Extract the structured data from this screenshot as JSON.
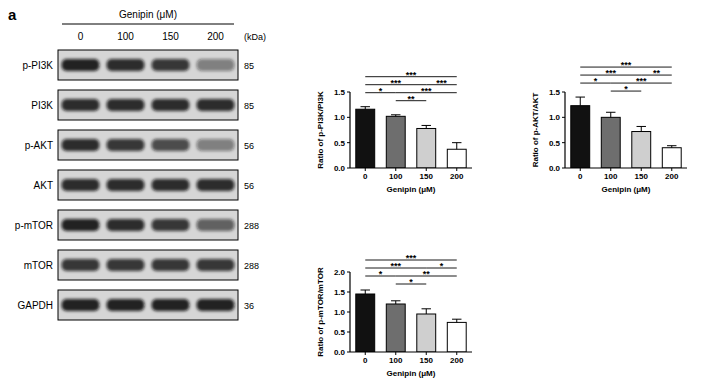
{
  "panel_label": "a",
  "blot": {
    "treatment_label": "Genipin (μM)",
    "lanes": [
      "0",
      "100",
      "150",
      "200"
    ],
    "unit_label": "(kDa)",
    "rows": [
      {
        "label": "p-PI3K",
        "kda": 85,
        "intensities": [
          0.9,
          0.85,
          0.8,
          0.45
        ]
      },
      {
        "label": "PI3K",
        "kda": 85,
        "intensities": [
          0.85,
          0.85,
          0.85,
          0.85
        ]
      },
      {
        "label": "p-AKT",
        "kda": 56,
        "intensities": [
          0.85,
          0.8,
          0.7,
          0.45
        ]
      },
      {
        "label": "AKT",
        "kda": 56,
        "intensities": [
          0.85,
          0.85,
          0.85,
          0.85
        ]
      },
      {
        "label": "p-mTOR",
        "kda": 288,
        "intensities": [
          0.9,
          0.85,
          0.8,
          0.6
        ]
      },
      {
        "label": "mTOR",
        "kda": 288,
        "intensities": [
          0.8,
          0.8,
          0.8,
          0.8
        ]
      },
      {
        "label": "GAPDH",
        "kda": 36,
        "intensities": [
          0.9,
          0.9,
          0.9,
          0.9
        ]
      }
    ]
  },
  "chart_data": [
    {
      "type": "bar",
      "x_label": "Genipin (μM)",
      "y_label": "Ratio of p-PI3K/PI3K",
      "categories": [
        "0",
        "100",
        "150",
        "200"
      ],
      "values": [
        1.16,
        1.02,
        0.78,
        0.37
      ],
      "errors": [
        0.05,
        0.03,
        0.06,
        0.13
      ],
      "colors": [
        "#111111",
        "#6e6e6e",
        "#cfcfcf",
        "#ffffff"
      ],
      "ylim": [
        0,
        1.5
      ],
      "yticks": [
        {
          "value": 0,
          "label": "0.0"
        },
        {
          "value": 0.5,
          "label": "0.5"
        },
        {
          "value": 1,
          "label": "1.0"
        },
        {
          "value": 1.5,
          "label": "1.5"
        }
      ],
      "significance": [
        {
          "from": "0",
          "to": "100",
          "label": "*"
        },
        {
          "from": "0",
          "to": "150",
          "label": "***"
        },
        {
          "from": "0",
          "to": "200",
          "label": "***"
        },
        {
          "from": "100",
          "to": "150",
          "label": "**"
        },
        {
          "from": "100",
          "to": "200",
          "label": "***"
        },
        {
          "from": "150",
          "to": "200",
          "label": "***"
        }
      ]
    },
    {
      "type": "bar",
      "x_label": "Genipin (μM)",
      "y_label": "Ratio of p-AKT/AKT",
      "categories": [
        "0",
        "100",
        "150",
        "200"
      ],
      "values": [
        1.23,
        1.0,
        0.72,
        0.4
      ],
      "errors": [
        0.17,
        0.1,
        0.1,
        0.04
      ],
      "colors": [
        "#111111",
        "#6e6e6e",
        "#cfcfcf",
        "#ffffff"
      ],
      "ylim": [
        0,
        1.5
      ],
      "yticks": [
        {
          "value": 0,
          "label": "0.0"
        },
        {
          "value": 0.5,
          "label": "0.5"
        },
        {
          "value": 1,
          "label": "1.0"
        },
        {
          "value": 1.5,
          "label": "1.5"
        }
      ],
      "significance": [
        {
          "from": "0",
          "to": "100",
          "label": "*"
        },
        {
          "from": "0",
          "to": "150",
          "label": "***"
        },
        {
          "from": "0",
          "to": "200",
          "label": "***"
        },
        {
          "from": "100",
          "to": "150",
          "label": "*"
        },
        {
          "from": "100",
          "to": "200",
          "label": "***"
        },
        {
          "from": "150",
          "to": "200",
          "label": "**"
        }
      ]
    },
    {
      "type": "bar",
      "x_label": "Genipin (μM)",
      "y_label": "Ratio of p-mTOR/mTOR",
      "categories": [
        "0",
        "100",
        "150",
        "200"
      ],
      "values": [
        1.45,
        1.2,
        0.95,
        0.74
      ],
      "errors": [
        0.1,
        0.08,
        0.13,
        0.08
      ],
      "colors": [
        "#111111",
        "#6e6e6e",
        "#cfcfcf",
        "#ffffff"
      ],
      "ylim": [
        0,
        2.0
      ],
      "yticks": [
        {
          "value": 0,
          "label": "0.0"
        },
        {
          "value": 0.5,
          "label": "0.5"
        },
        {
          "value": 1,
          "label": "1.0"
        },
        {
          "value": 1.5,
          "label": "1.5"
        },
        {
          "value": 2,
          "label": "2.0"
        }
      ],
      "significance": [
        {
          "from": "0",
          "to": "100",
          "label": "*"
        },
        {
          "from": "0",
          "to": "150",
          "label": "***"
        },
        {
          "from": "0",
          "to": "200",
          "label": "***"
        },
        {
          "from": "100",
          "to": "150",
          "label": "*"
        },
        {
          "from": "100",
          "to": "200",
          "label": "**"
        },
        {
          "from": "150",
          "to": "200",
          "label": "*"
        }
      ]
    }
  ]
}
